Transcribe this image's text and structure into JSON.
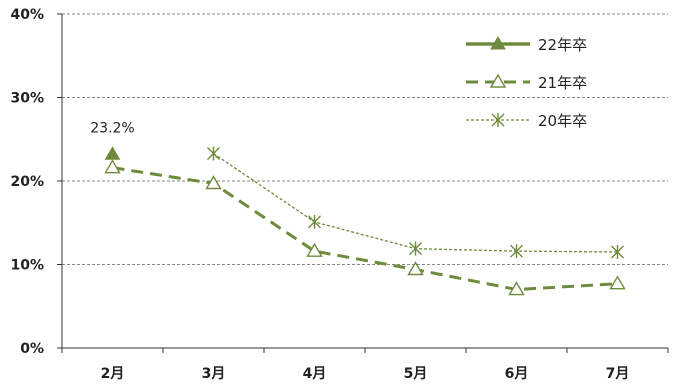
{
  "chart_data": {
    "type": "line",
    "categories": [
      "2月",
      "3月",
      "4月",
      "5月",
      "6月",
      "7月"
    ],
    "y_ticks": [
      "0%",
      "10%",
      "20%",
      "30%",
      "40%"
    ],
    "ylim": [
      0,
      40
    ],
    "grid": true,
    "legend_position": "top-right",
    "series": [
      {
        "name": "22年卒",
        "values": [
          23.2,
          null,
          null,
          null,
          null,
          null
        ],
        "color": "#6e8b3d",
        "marker": "filled-triangle",
        "line": "solid-thick"
      },
      {
        "name": "21年卒",
        "values": [
          21.6,
          19.7,
          11.6,
          9.4,
          7.0,
          7.7
        ],
        "color": "#6e8b3d",
        "marker": "open-triangle",
        "line": "dashed"
      },
      {
        "name": "20年卒",
        "values": [
          null,
          23.3,
          15.1,
          11.9,
          11.6,
          11.5
        ],
        "color": "#6e8b3d",
        "marker": "asterisk",
        "line": "dotted"
      }
    ],
    "data_labels": [
      {
        "series": "22年卒",
        "category": "2月",
        "text": "23.2%"
      }
    ]
  }
}
